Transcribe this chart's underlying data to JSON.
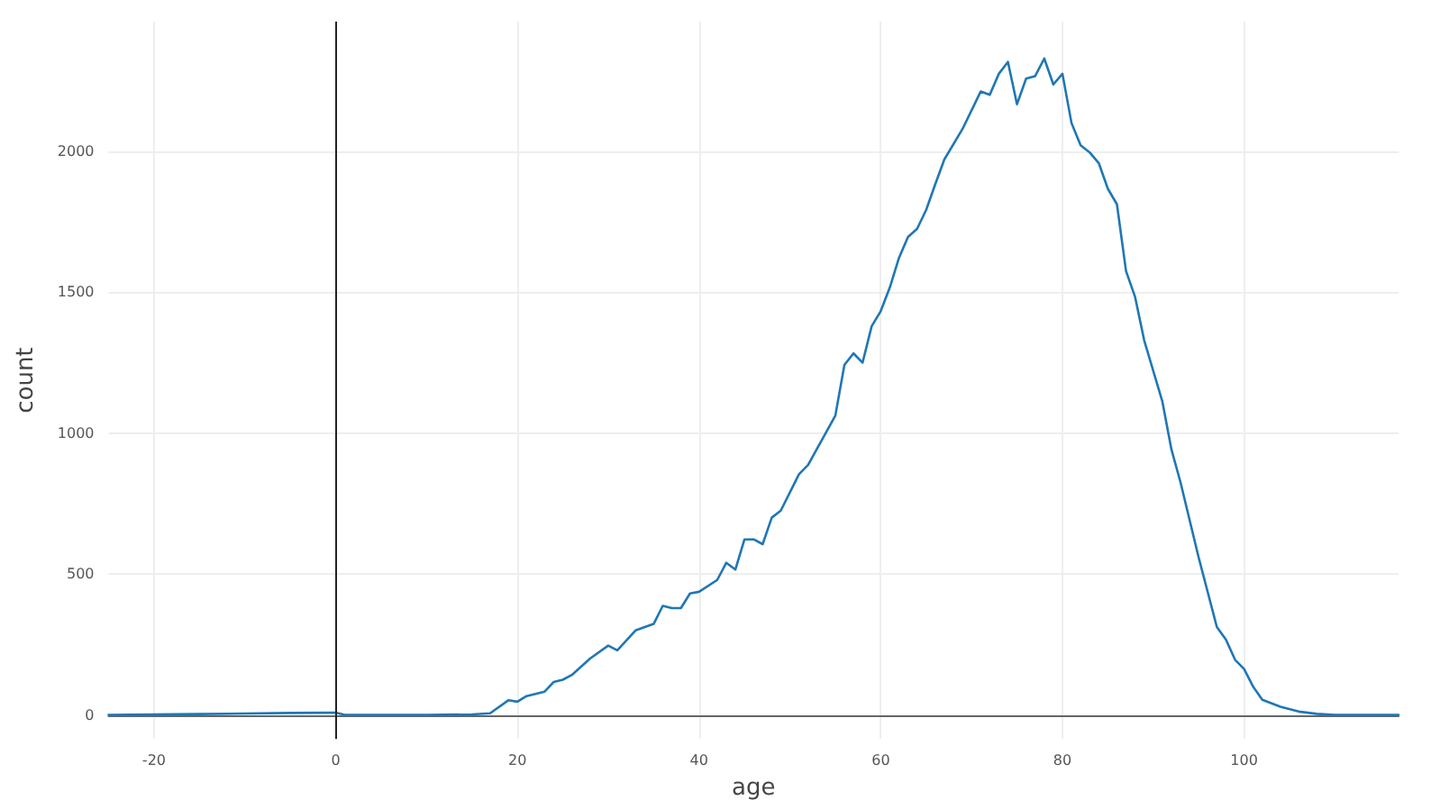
{
  "chart_data": {
    "type": "line",
    "xlabel": "age",
    "ylabel": "count",
    "x": [
      -25,
      -15,
      -10,
      -5,
      0,
      1,
      5,
      10,
      15,
      17,
      19,
      20,
      21,
      23,
      24,
      25,
      26,
      28,
      30,
      31,
      33,
      35,
      36,
      37,
      38,
      39,
      40,
      42,
      43,
      44,
      45,
      46,
      47,
      48,
      49,
      51,
      52,
      55,
      56,
      57,
      58,
      59,
      60,
      61,
      62,
      63,
      64,
      65,
      66,
      67,
      69,
      71,
      72,
      73,
      74,
      75,
      76,
      77,
      78,
      79,
      80,
      81,
      82,
      83,
      84,
      85,
      86,
      87,
      88,
      89,
      91,
      92,
      93,
      95,
      97,
      98,
      99,
      100,
      101,
      102,
      104,
      106,
      108,
      110,
      117
    ],
    "series": [
      {
        "color": "#1f77b4",
        "values": [
          0,
          3,
          5,
          7,
          8,
          0,
          0,
          0,
          2,
          6,
          52,
          47,
          67,
          83,
          117,
          125,
          142,
          200,
          246,
          229,
          300,
          323,
          387,
          379,
          379,
          431,
          437,
          479,
          540,
          516,
          623,
          623,
          606,
          700,
          725,
          854,
          887,
          1062,
          1242,
          1283,
          1250,
          1379,
          1433,
          1517,
          1621,
          1696,
          1725,
          1792,
          1883,
          1971,
          2079,
          2212,
          2200,
          2275,
          2317,
          2167,
          2258,
          2267,
          2329,
          2237,
          2275,
          2100,
          2021,
          1996,
          1958,
          1867,
          1812,
          1575,
          1483,
          1329,
          1112,
          942,
          825,
          558,
          312,
          267,
          196,
          163,
          100,
          54,
          29,
          12,
          4,
          0,
          0
        ]
      }
    ],
    "xlim": [
      -25,
      117
    ],
    "ylim": [
      -85,
      2460
    ],
    "xticks": [
      -20,
      0,
      20,
      40,
      60,
      80,
      100
    ],
    "yticks": [
      0,
      500,
      1000,
      1500,
      2000
    ],
    "grid": true,
    "marker": "none",
    "line_style": "solid",
    "ref_lines": [
      {
        "axis": "x",
        "value": 0,
        "color": "#222222"
      }
    ]
  }
}
